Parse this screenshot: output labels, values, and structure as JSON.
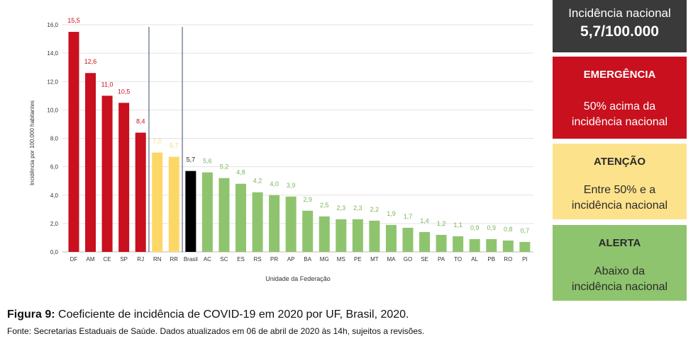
{
  "chart_data": {
    "type": "bar",
    "ylabel": "Incidência por 100.000 habitantes",
    "xlabel": "Unidade da Federação",
    "ylim": [
      0,
      16
    ],
    "yticks": [
      "0,0",
      "2,0",
      "4,0",
      "6,0",
      "8,0",
      "10,0",
      "12,0",
      "14,0",
      "16,0"
    ],
    "grid": true,
    "categories": [
      "DF",
      "AM",
      "CE",
      "SP",
      "RJ",
      "RN",
      "RR",
      "Brasil",
      "AC",
      "SC",
      "ES",
      "RS",
      "PR",
      "AP",
      "BA",
      "MG",
      "MS",
      "PE",
      "MT",
      "MA",
      "GO",
      "SE",
      "PA",
      "TO",
      "AL",
      "PB",
      "RO",
      "PI"
    ],
    "values": [
      15.5,
      12.6,
      11.0,
      10.5,
      8.4,
      7.0,
      6.7,
      5.7,
      5.6,
      5.2,
      4.8,
      4.2,
      4.0,
      3.9,
      2.9,
      2.5,
      2.3,
      2.3,
      2.2,
      1.9,
      1.7,
      1.4,
      1.2,
      1.1,
      0.9,
      0.9,
      0.8,
      0.7
    ],
    "value_labels": [
      "15,5",
      "12,6",
      "11,0",
      "10,5",
      "8,4",
      "7,0",
      "6,7",
      "5,7",
      "5,6",
      "5,2",
      "4,8",
      "4,2",
      "4,0",
      "3,9",
      "2,9",
      "2,5",
      "2,3",
      "2,3",
      "2,2",
      "1,9",
      "1,7",
      "1,4",
      "1,2",
      "1,1",
      "0,9",
      "0,9",
      "0,8",
      "0,7"
    ],
    "groups": [
      "emergencia",
      "emergencia",
      "emergencia",
      "emergencia",
      "emergencia",
      "atencao",
      "atencao",
      "nacional",
      "alerta",
      "alerta",
      "alerta",
      "alerta",
      "alerta",
      "alerta",
      "alerta",
      "alerta",
      "alerta",
      "alerta",
      "alerta",
      "alerta",
      "alerta",
      "alerta",
      "alerta",
      "alerta",
      "alerta",
      "alerta",
      "alerta",
      "alerta"
    ],
    "colors": {
      "emergencia": "#c8101e",
      "atencao": "#fdd766",
      "nacional": "#000000",
      "alerta": "#8fc46e",
      "label_emergencia": "#c8101e",
      "label_atencao": "#fbd87a",
      "label_nacional": "#222222",
      "label_alerta": "#7ab55a",
      "grid": "#e3e3e3",
      "divider": "#5a6a88"
    }
  },
  "legend": {
    "national": {
      "line1": "Incidência nacional",
      "line2": "5,7/100.000"
    },
    "emergency": {
      "title": "EMERGÊNCIA",
      "desc1": "50% acima da",
      "desc2": "incidência nacional"
    },
    "attention": {
      "title": "ATENÇÃO",
      "desc1": "Entre 50% e a",
      "desc2": "incidência nacional"
    },
    "alert": {
      "title": "ALERTA",
      "desc1": "Abaixo da",
      "desc2": "incidência nacional"
    }
  },
  "caption": {
    "figure": "Figura 9:",
    "text": " Coeficiente de incidência de COVID-19 em 2020 por UF, Brasil, 2020.",
    "source": "Fonte: Secretarias Estaduais de Saúde. Dados atualizados em 06 de abril de 2020 às 14h, sujeitos a revisões."
  }
}
